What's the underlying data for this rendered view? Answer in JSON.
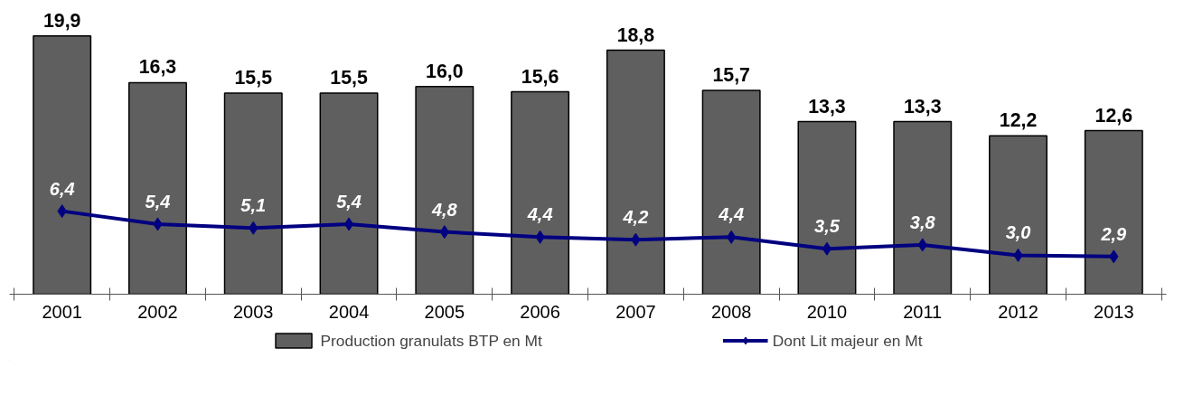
{
  "chart_data": {
    "type": "bar",
    "categories": [
      "2001",
      "2002",
      "2003",
      "2004",
      "2005",
      "2006",
      "2007",
      "2008",
      "2010",
      "2011",
      "2012",
      "2013"
    ],
    "series": [
      {
        "name": "Production granulats BTP en Mt",
        "color": "#5f5f5f",
        "values": [
          19.9,
          16.3,
          15.5,
          15.5,
          16.0,
          15.6,
          18.8,
          15.7,
          13.3,
          13.3,
          12.2,
          12.6
        ],
        "value_labels": [
          "19,9",
          "16,3",
          "15,5",
          "15,5",
          "16,0",
          "15,6",
          "18,8",
          "15,7",
          "13,3",
          "13,3",
          "12,2",
          "12,6"
        ]
      },
      {
        "name": "Dont Lit majeur en Mt",
        "type": "line",
        "color": "#000080",
        "marker": "diamond",
        "values": [
          6.4,
          5.4,
          5.1,
          5.4,
          4.8,
          4.4,
          4.2,
          4.4,
          3.5,
          3.8,
          3.0,
          2.9
        ],
        "value_labels": [
          "6,4",
          "5,4",
          "5,1",
          "5,4",
          "4,8",
          "4,4",
          "4,2",
          "4,4",
          "3,5",
          "3,8",
          "3,0",
          "2,9"
        ]
      }
    ],
    "legend": "bottom",
    "grid": false,
    "tick_labels": "x"
  }
}
